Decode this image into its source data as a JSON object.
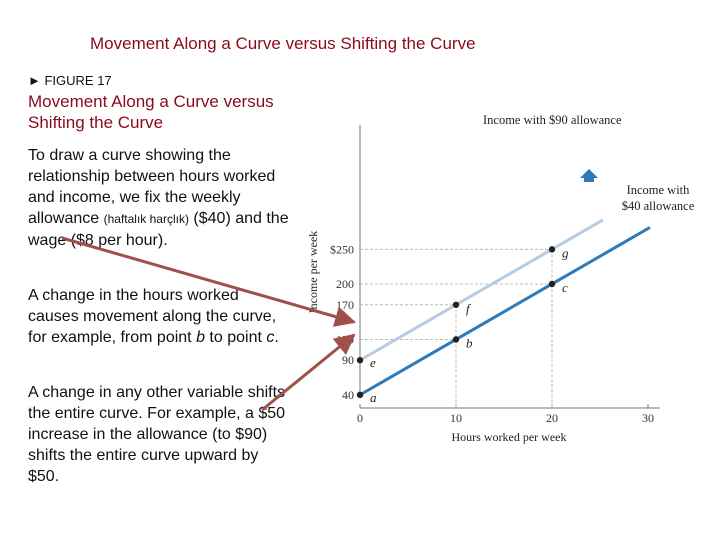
{
  "header": {
    "title": "Movement Along a Curve versus Shifting the Curve"
  },
  "figure": {
    "label": "► FIGURE 17",
    "title": "Movement Along a Curve versus Shifting the Curve"
  },
  "text": {
    "p1a": "To draw a curve showing the relationship between hours worked and income, we fix the weekly allowance ",
    "p1note": "(haftalık harçlık)",
    "p1b": " ($40) and the wage ($8 per hour).",
    "p2a": "A change in the hours worked causes movement along the curve, for example, from point ",
    "p2b": "b",
    "p2c": " to point ",
    "p2d": "c",
    "p2e": ".",
    "p3": "A change in any other variable shifts the entire curve. For example, a $50 increase in the allowance (to $90) shifts the entire curve upward by $50."
  },
  "colors": {
    "title": "#8b0a1e",
    "line_40": "#2e7ab8",
    "line_90": "#b7cbe2",
    "arrow": "#a0504a",
    "shift_arrow": "#2e7ab8"
  },
  "chart_data": {
    "type": "line",
    "xlabel": "Hours worked per week",
    "ylabel": "Income per week",
    "xlim": [
      0,
      30
    ],
    "xticks": [
      "0",
      "10",
      "20",
      "30"
    ],
    "ytick_labels": [
      "40",
      "90",
      "120",
      "170",
      "200",
      "$250"
    ],
    "series": [
      {
        "name": "Income with $40 allowance",
        "x": [
          0,
          10,
          20,
          30
        ],
        "y": [
          40,
          120,
          200,
          280
        ]
      },
      {
        "name": "Income with $90 allowance",
        "x": [
          0,
          10,
          20,
          30
        ],
        "y": [
          90,
          170,
          250,
          330
        ]
      }
    ],
    "points": [
      {
        "label": "a",
        "x": 0,
        "y": 40
      },
      {
        "label": "b",
        "x": 10,
        "y": 120
      },
      {
        "label": "c",
        "x": 20,
        "y": 200
      },
      {
        "label": "e",
        "x": 0,
        "y": 90
      },
      {
        "label": "f",
        "x": 10,
        "y": 170
      },
      {
        "label": "g",
        "x": 20,
        "y": 250
      }
    ],
    "legend_placement": "on-lines",
    "grid": false
  }
}
